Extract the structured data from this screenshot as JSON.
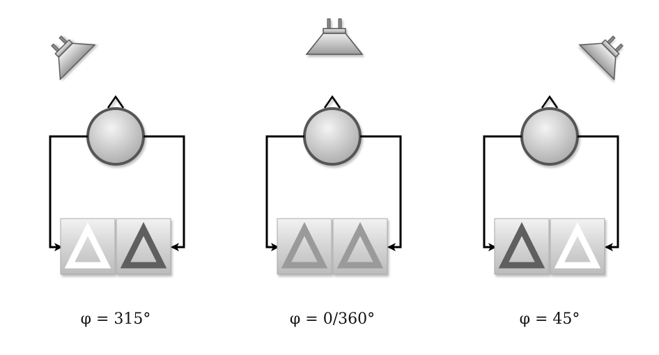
{
  "panels": [
    {
      "angle_label": "φ = 315°",
      "speaker_orientation": "rotated-left",
      "left_triangle": "white",
      "right_triangle": "dark"
    },
    {
      "angle_label": "φ = 0/360°",
      "speaker_orientation": "upright",
      "left_triangle": "grey",
      "right_triangle": "grey"
    },
    {
      "angle_label": "φ = 45°",
      "speaker_orientation": "rotated-right",
      "left_triangle": "dark",
      "right_triangle": "white"
    }
  ],
  "colors": {
    "triangle_white": "#ffffff",
    "triangle_grey": "#9a9a9a",
    "triangle_dark": "#5e5e5e",
    "outline": "#5f5f5f",
    "arrow": "#000000"
  }
}
